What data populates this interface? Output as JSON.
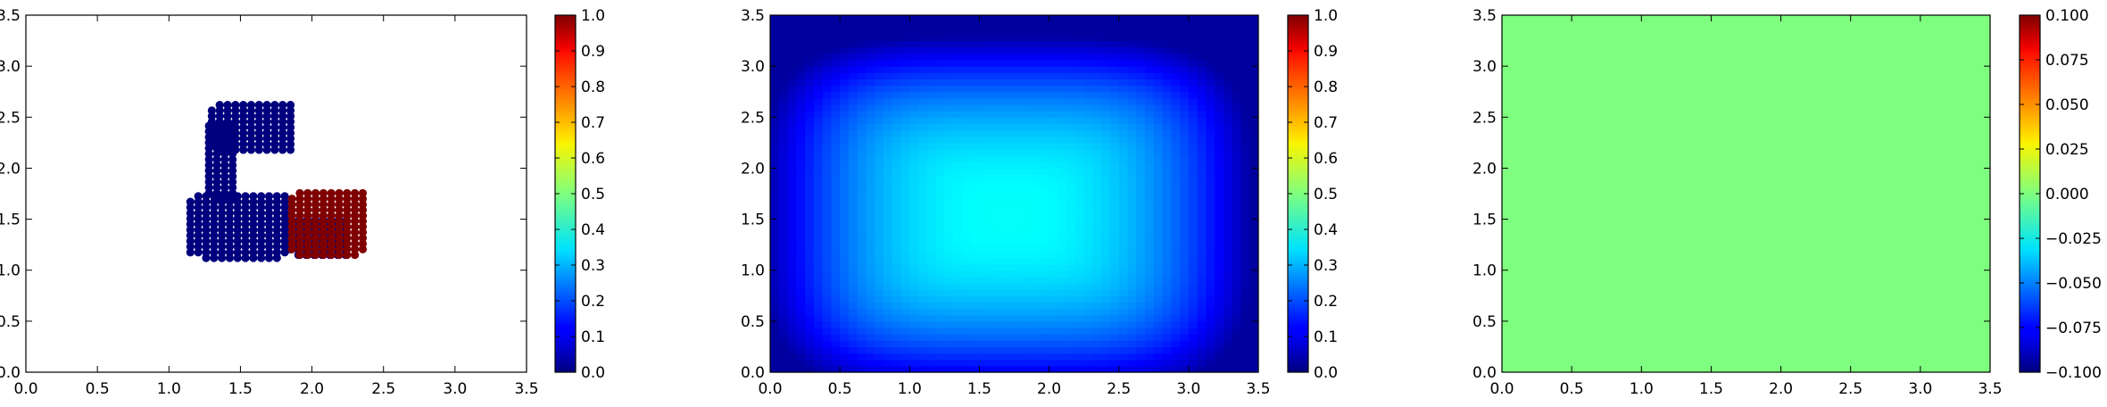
{
  "chart_data": [
    {
      "type": "scatter",
      "xlim": [
        0,
        3.5
      ],
      "ylim": [
        0,
        3.5
      ],
      "x_ticks": [
        "0.0",
        "0.5",
        "1.0",
        "1.5",
        "2.0",
        "2.5",
        "3.0",
        "3.5"
      ],
      "y_ticks": [
        "0.0",
        "0.5",
        "1.0",
        "1.5",
        "2.0",
        "2.5",
        "3.0",
        "3.5"
      ],
      "colorbar": {
        "range": [
          0,
          1
        ],
        "ticks": [
          "0.0",
          "0.1",
          "0.2",
          "0.3",
          "0.4",
          "0.5",
          "0.6",
          "0.7",
          "0.8",
          "0.9",
          "1.0"
        ]
      },
      "series": [
        {
          "value": 0,
          "color": "#00007f",
          "regions": [
            {
              "x": [
                1.15,
                1.85
              ],
              "y": [
                1.12,
                1.75
              ],
              "step": 0.055
            },
            {
              "x": [
                1.28,
                1.48
              ],
              "y": [
                1.7,
                2.45
              ],
              "step": 0.055
            },
            {
              "x": [
                1.3,
                1.9
              ],
              "y": [
                2.18,
                2.62
              ],
              "step": 0.055
            },
            {
              "x": [
                1.85,
                2.25
              ],
              "y": [
                1.15,
                1.52
              ],
              "step": 0.055
            }
          ]
        },
        {
          "value": 1,
          "color": "#7f0000",
          "regions": [
            {
              "x": [
                1.86,
                2.38
              ],
              "y": [
                1.15,
                1.78
              ],
              "step": 0.055
            }
          ]
        }
      ]
    },
    {
      "type": "heatmap",
      "xlim": [
        0,
        3.5
      ],
      "ylim": [
        0,
        3.5
      ],
      "x_ticks": [
        "0.0",
        "0.5",
        "1.0",
        "1.5",
        "2.0",
        "2.5",
        "3.0",
        "3.5"
      ],
      "y_ticks": [
        "0.0",
        "0.5",
        "1.0",
        "1.5",
        "2.0",
        "2.5",
        "3.0",
        "3.5"
      ],
      "colorbar": {
        "range": [
          0,
          1
        ],
        "ticks": [
          "0.0",
          "0.1",
          "0.2",
          "0.3",
          "0.4",
          "0.5",
          "0.6",
          "0.7",
          "0.8",
          "0.9",
          "1.0"
        ]
      },
      "field": {
        "center": [
          1.7,
          1.55
        ],
        "peak": 0.38,
        "edge": 0.03
      }
    },
    {
      "type": "heatmap",
      "xlim": [
        0,
        3.5
      ],
      "ylim": [
        0,
        3.5
      ],
      "x_ticks": [
        "0.0",
        "0.5",
        "1.0",
        "1.5",
        "2.0",
        "2.5",
        "3.0",
        "3.5"
      ],
      "y_ticks": [
        "0.0",
        "0.5",
        "1.0",
        "1.5",
        "2.0",
        "2.5",
        "3.0",
        "3.5"
      ],
      "colorbar": {
        "range": [
          -0.1,
          0.1
        ],
        "ticks": [
          "−0.100",
          "−0.075",
          "−0.050",
          "−0.025",
          "0.000",
          "0.025",
          "0.050",
          "0.075",
          "0.100"
        ]
      },
      "field": {
        "constant_value": 0.0,
        "color": "#7fff7f"
      }
    }
  ]
}
